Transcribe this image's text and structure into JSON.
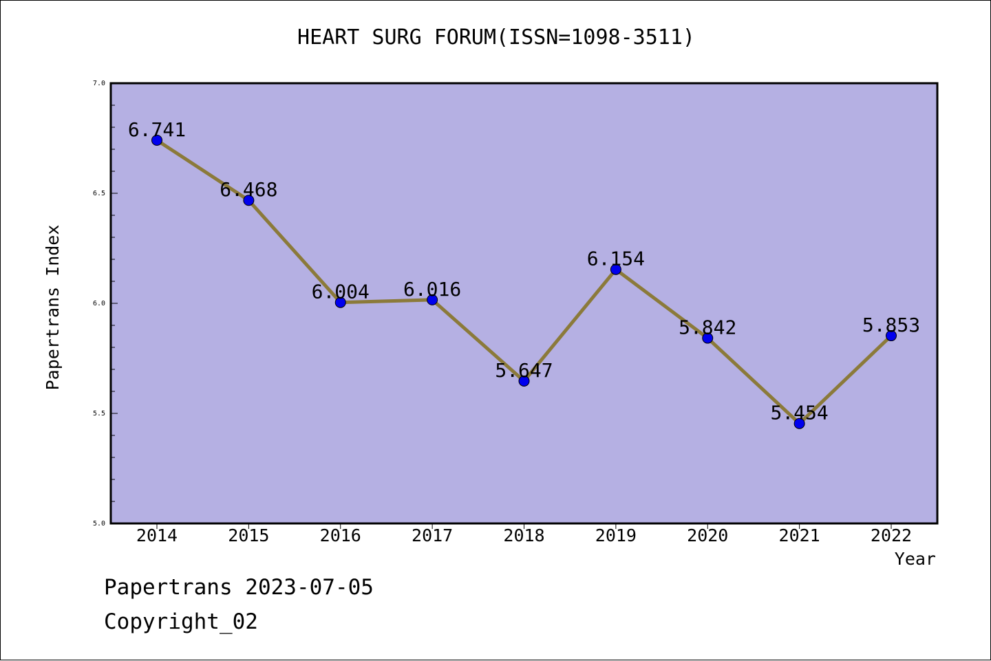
{
  "chart_data": {
    "type": "line",
    "title": "HEART SURG FORUM(ISSN=1098-3511)",
    "xlabel": "Year",
    "ylabel": "Papertrans Index",
    "categories": [
      "2014",
      "2015",
      "2016",
      "2017",
      "2018",
      "2019",
      "2020",
      "2021",
      "2022"
    ],
    "series": [
      {
        "values": [
          6.741,
          6.468,
          6.004,
          6.016,
          5.647,
          6.154,
          5.842,
          5.454,
          5.853
        ],
        "data_labels": [
          "6.741",
          "6.468",
          "6.004",
          "6.016",
          "5.647",
          "6.154",
          "5.842",
          "5.454",
          "5.853"
        ]
      }
    ],
    "ylim": [
      5.0,
      7.0
    ],
    "y_ticks": [
      "5.0",
      "5.5",
      "6.0",
      "6.5",
      "7.0"
    ],
    "grid": false,
    "colors": {
      "plot_background": "#b5b0e3",
      "line": "#8b7a3a",
      "marker": "#0000ee"
    }
  },
  "footer": {
    "date_line": "Papertrans 2023-07-05",
    "copyright_line": "Copyright_02"
  }
}
